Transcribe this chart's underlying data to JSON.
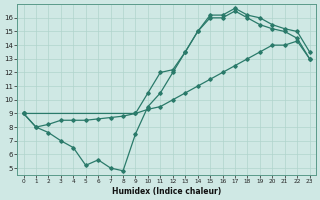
{
  "xlabel": "Humidex (Indice chaleur)",
  "bg_color": "#cfe8e4",
  "grid_color": "#b0d4cc",
  "line_color": "#2a7a6a",
  "xlim": [
    -0.5,
    23.5
  ],
  "ylim": [
    4.5,
    17.0
  ],
  "xticks": [
    0,
    1,
    2,
    3,
    4,
    5,
    6,
    7,
    8,
    9,
    10,
    11,
    12,
    13,
    14,
    15,
    16,
    17,
    18,
    19,
    20,
    21,
    22,
    23
  ],
  "yticks": [
    5,
    6,
    7,
    8,
    9,
    10,
    11,
    12,
    13,
    14,
    15,
    16
  ],
  "line1_x": [
    0,
    1,
    2,
    3,
    4,
    5,
    6,
    7,
    8,
    9,
    10,
    11,
    12,
    13,
    14,
    15,
    16,
    17,
    18,
    19,
    20,
    21,
    22,
    23
  ],
  "line1_y": [
    9.0,
    8.0,
    7.6,
    7.0,
    6.5,
    5.2,
    5.6,
    5.0,
    4.8,
    7.5,
    9.5,
    10.5,
    12.0,
    13.5,
    15.0,
    16.0,
    16.0,
    16.5,
    16.0,
    15.5,
    15.2,
    15.0,
    14.5,
    13.0
  ],
  "line2_x": [
    0,
    1,
    2,
    3,
    4,
    5,
    6,
    7,
    8,
    9,
    10,
    11,
    12,
    13,
    14,
    15,
    16,
    17,
    18,
    19,
    20,
    21,
    22,
    23
  ],
  "line2_y": [
    9.0,
    8.0,
    8.2,
    8.5,
    8.5,
    8.5,
    8.6,
    8.7,
    8.8,
    9.0,
    9.3,
    9.5,
    10.0,
    10.5,
    11.0,
    11.5,
    12.0,
    12.5,
    13.0,
    13.5,
    14.0,
    14.0,
    14.3,
    13.0
  ],
  "line3_x": [
    0,
    9,
    10,
    11,
    12,
    13,
    14,
    15,
    16,
    17,
    18,
    19,
    20,
    21,
    22,
    23
  ],
  "line3_y": [
    9.0,
    9.0,
    10.5,
    12.0,
    12.2,
    13.5,
    15.0,
    16.2,
    16.2,
    16.7,
    16.2,
    16.0,
    15.5,
    15.2,
    15.0,
    13.5
  ]
}
